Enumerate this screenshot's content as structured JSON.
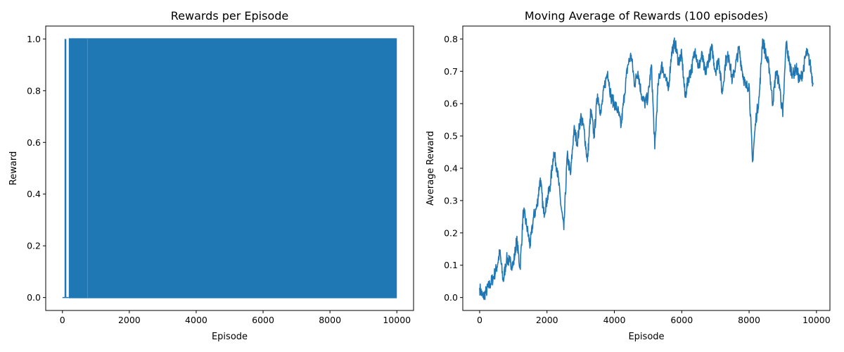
{
  "chart_data": [
    {
      "type": "line",
      "title": "Rewards per Episode",
      "xlabel": "Episode",
      "ylabel": "Reward",
      "xlim": [
        -500,
        10500
      ],
      "ylim": [
        -0.05,
        1.05
      ],
      "xticks": [
        0,
        2000,
        4000,
        6000,
        8000,
        10000
      ],
      "yticks": [
        0.0,
        0.2,
        0.4,
        0.6,
        0.8,
        1.0
      ],
      "xtick_labels": [
        "0",
        "2000",
        "4000",
        "6000",
        "8000",
        "10000"
      ],
      "ytick_labels": [
        "0.0",
        "0.2",
        "0.4",
        "0.6",
        "0.8",
        "1.0"
      ],
      "grid": false,
      "color": "#1f77b4",
      "series": [
        {
          "description": "binary per-episode reward (0 or 1); dense oscillation between 0 and 1 over episodes 0-10000",
          "x_range": [
            0,
            10000
          ],
          "values_set": [
            0,
            1
          ],
          "notable_points": [
            {
              "x": 0,
              "y": 0
            },
            {
              "x": 90,
              "y": 1
            },
            {
              "x": 100,
              "y": 0
            },
            {
              "x": 190,
              "y": 1
            },
            {
              "x": 750,
              "y": 1
            },
            {
              "x": 10000,
              "y": 1
            }
          ]
        }
      ]
    },
    {
      "type": "line",
      "title": "Moving Average of Rewards (100 episodes)",
      "xlabel": "Episode",
      "ylabel": "Average Reward",
      "xlim": [
        -500,
        10400
      ],
      "ylim": [
        -0.04,
        0.84
      ],
      "xticks": [
        0,
        2000,
        4000,
        6000,
        8000,
        10000
      ],
      "yticks": [
        0.0,
        0.1,
        0.2,
        0.3,
        0.4,
        0.5,
        0.6,
        0.7,
        0.8
      ],
      "xtick_labels": [
        "0",
        "2000",
        "4000",
        "6000",
        "8000",
        "10000"
      ],
      "ytick_labels": [
        "0.0",
        "0.1",
        "0.2",
        "0.3",
        "0.4",
        "0.5",
        "0.6",
        "0.7",
        "0.8"
      ],
      "grid": false,
      "color": "#1f77b4",
      "series": [
        {
          "x": [
            0,
            100,
            200,
            300,
            400,
            500,
            600,
            700,
            800,
            900,
            1000,
            1100,
            1200,
            1300,
            1400,
            1500,
            1600,
            1700,
            1800,
            1900,
            2000,
            2100,
            2200,
            2300,
            2400,
            2500,
            2600,
            2700,
            2800,
            2900,
            3000,
            3100,
            3200,
            3300,
            3400,
            3500,
            3600,
            3700,
            3800,
            3900,
            4000,
            4100,
            4200,
            4300,
            4400,
            4500,
            4600,
            4700,
            4800,
            4900,
            5000,
            5100,
            5200,
            5300,
            5400,
            5500,
            5600,
            5700,
            5800,
            5900,
            6000,
            6100,
            6200,
            6300,
            6400,
            6500,
            6600,
            6700,
            6800,
            6900,
            7000,
            7100,
            7200,
            7300,
            7400,
            7500,
            7600,
            7700,
            7800,
            7900,
            8000,
            8100,
            8200,
            8300,
            8400,
            8500,
            8600,
            8700,
            8800,
            8900,
            9000,
            9100,
            9200,
            9300,
            9400,
            9500,
            9600,
            9700,
            9800,
            9900
          ],
          "values": [
            0.03,
            0.0,
            0.02,
            0.04,
            0.06,
            0.09,
            0.14,
            0.05,
            0.12,
            0.11,
            0.1,
            0.18,
            0.09,
            0.27,
            0.22,
            0.16,
            0.25,
            0.28,
            0.37,
            0.26,
            0.3,
            0.35,
            0.45,
            0.4,
            0.3,
            0.21,
            0.44,
            0.38,
            0.52,
            0.48,
            0.56,
            0.52,
            0.42,
            0.58,
            0.5,
            0.63,
            0.57,
            0.65,
            0.7,
            0.62,
            0.6,
            0.58,
            0.53,
            0.63,
            0.72,
            0.75,
            0.66,
            0.7,
            0.63,
            0.6,
            0.62,
            0.72,
            0.46,
            0.66,
            0.72,
            0.69,
            0.64,
            0.76,
            0.79,
            0.73,
            0.75,
            0.62,
            0.68,
            0.71,
            0.77,
            0.71,
            0.75,
            0.69,
            0.74,
            0.77,
            0.7,
            0.74,
            0.63,
            0.73,
            0.75,
            0.67,
            0.72,
            0.77,
            0.7,
            0.65,
            0.66,
            0.42,
            0.55,
            0.62,
            0.8,
            0.75,
            0.71,
            0.6,
            0.7,
            0.66,
            0.56,
            0.79,
            0.72,
            0.69,
            0.71,
            0.67,
            0.7,
            0.76,
            0.73,
            0.66
          ]
        }
      ]
    }
  ]
}
